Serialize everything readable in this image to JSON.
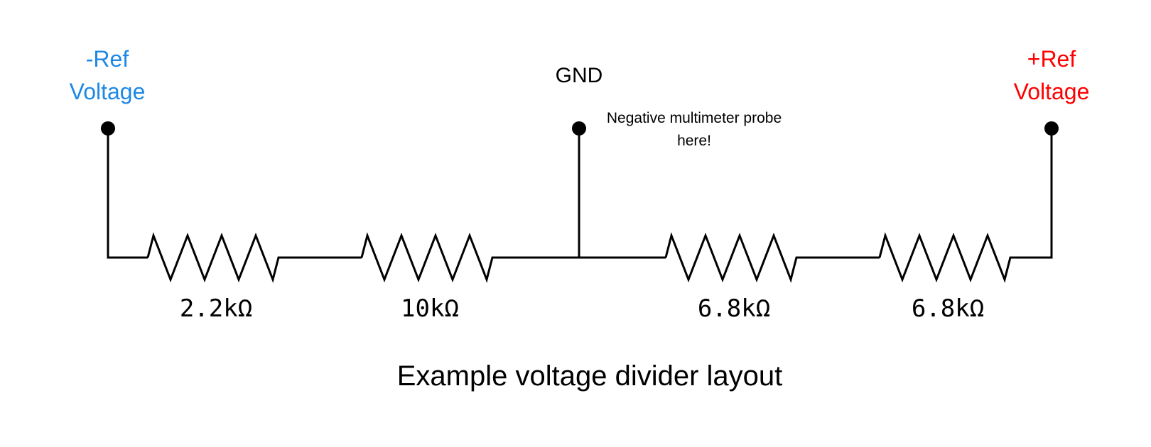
{
  "terminals": {
    "neg_ref": {
      "line1": "-Ref",
      "line2": "Voltage"
    },
    "gnd": {
      "label": "GND",
      "note_line1": "Negative multimeter probe",
      "note_line2": "here!"
    },
    "pos_ref": {
      "line1": "+Ref",
      "line2": "Voltage"
    }
  },
  "resistors": [
    {
      "value": "2.2kΩ"
    },
    {
      "value": "10kΩ"
    },
    {
      "value": "6.8kΩ"
    },
    {
      "value": "6.8kΩ"
    }
  ],
  "caption": "Example voltage divider layout",
  "colors": {
    "neg_ref": "#1e88e5",
    "pos_ref": "#ff0000",
    "wire": "#000000",
    "text": "#000000"
  }
}
